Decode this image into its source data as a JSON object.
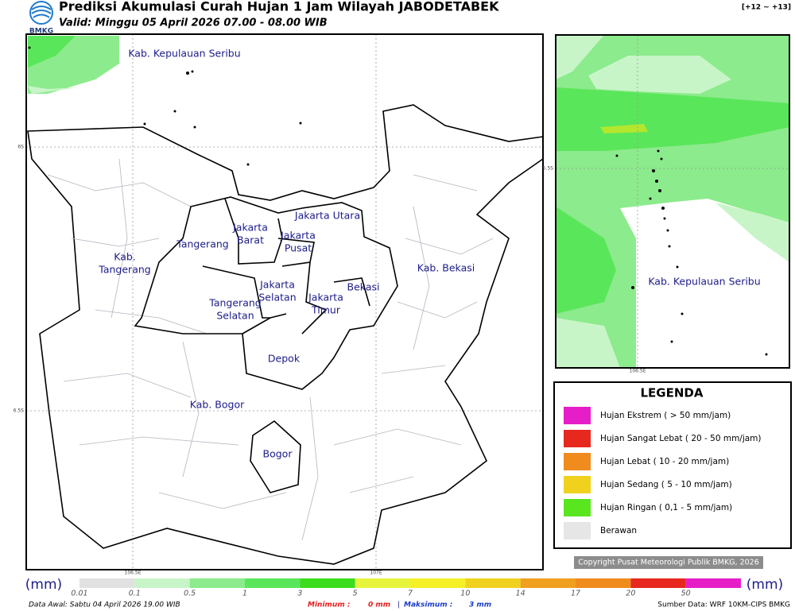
{
  "header": {
    "logo": "BMKG",
    "title": "Prediksi Akumulasi Curah Hujan 1 Jam Wilayah JABODETABEK",
    "valid": "Valid: Minggu 05 April 2026 07.00 - 08.00 WIB",
    "range": "[+12 ~ +13]"
  },
  "map": {
    "labels": [
      "Kab. Kepulauan Seribu",
      "Jakarta Utara",
      "Jakarta",
      "Barat",
      "Jakarta",
      "Pusat",
      "Tangerang",
      "Kab.",
      "Tangerang",
      "Jakarta",
      "Selatan",
      "Jakarta",
      "Timur",
      "Bekasi",
      "Kab. Bekasi",
      "Tangerang",
      "Selatan",
      "Depok",
      "Kab. Bogor",
      "Bogor"
    ],
    "lat_labels": [
      "6S",
      "6.5S"
    ],
    "lon_labels": [
      "106.5E",
      "107E"
    ]
  },
  "inset": {
    "label": "Kab. Kepulauan Seribu",
    "lat_label": "5.5S",
    "lon_label": "106.5E"
  },
  "legend": {
    "title": "LEGENDA",
    "items": [
      {
        "label": "Hujan Ekstrem ( > 50 mm/jam)",
        "color": "#e61ec8"
      },
      {
        "label": "Hujan Sangat Lebat ( 20 - 50 mm/jam)",
        "color": "#e6281e"
      },
      {
        "label": "Hujan Lebat ( 10 - 20 mm/jam)",
        "color": "#f08c1e"
      },
      {
        "label": "Hujan Sedang ( 5 - 10 mm/jam)",
        "color": "#f0d21e"
      },
      {
        "label": "Hujan Ringan ( 0,1 - 5 mm/jam)",
        "color": "#5ae61e"
      },
      {
        "label": "Berawan",
        "color": "#e6e6e6"
      }
    ]
  },
  "copyright": "Copyright Pusat Meteorologi Publik BMKG, 2026",
  "colorbar": {
    "unit": "(mm)",
    "ticks": [
      "0.01",
      "0.1",
      "0.5",
      "1",
      "3",
      "5",
      "7",
      "10",
      "14",
      "17",
      "20",
      "50"
    ],
    "colors": [
      "#e1e1e1",
      "#c8f5c8",
      "#8ceb8c",
      "#5ae65a",
      "#3cdc1e",
      "#e6f53c",
      "#f5f028",
      "#f0d21e",
      "#f0a01e",
      "#f08c1e",
      "#e6281e",
      "#e61ec8"
    ]
  },
  "footer": {
    "data_awal": "Data Awal: Sabtu 04 April 2026 19.00 WIB",
    "min_label": "Minimum :",
    "min_value": "0 mm",
    "sep": "|",
    "max_label": "Maksimum :",
    "max_value": "3 mm",
    "source": "Sumber Data: WRF 10KM-CIPS BMKG"
  }
}
